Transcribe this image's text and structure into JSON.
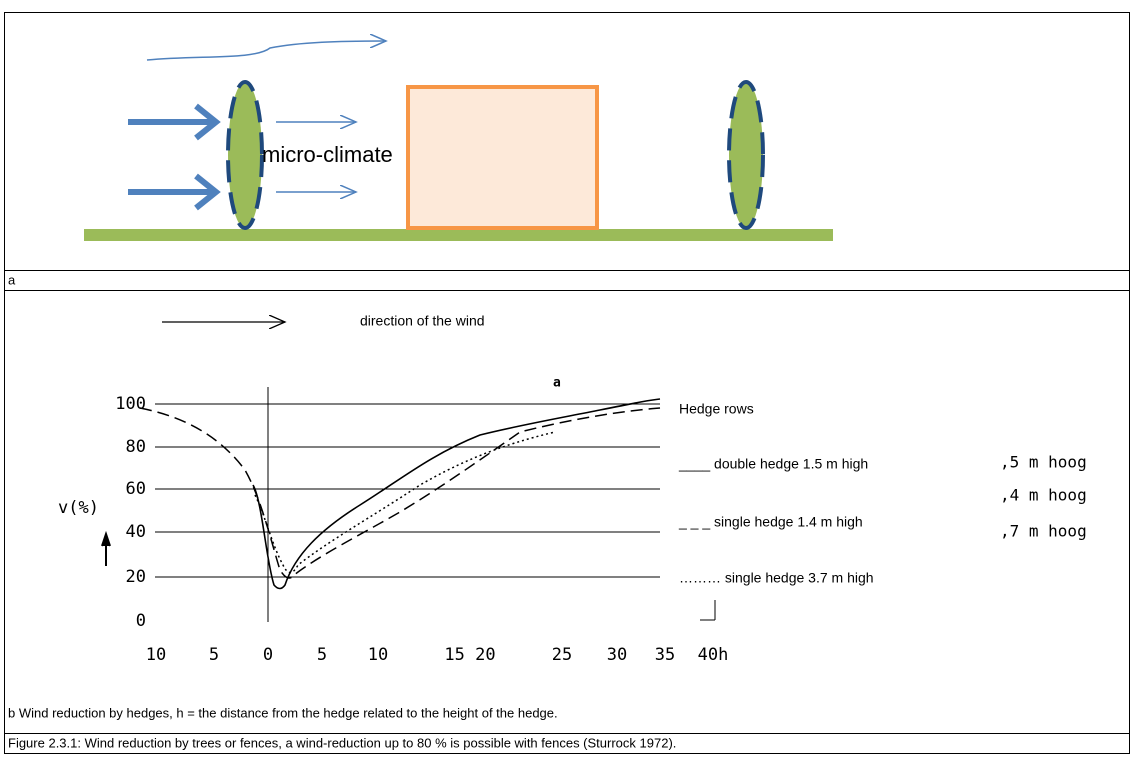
{
  "diagram": {
    "label": "micro-climate",
    "panel_label": "a"
  },
  "graph": {
    "arrow_label": "direction of the wind",
    "title": "a",
    "y_label": "v(%)",
    "yticks": [
      "100",
      "80",
      "60",
      "40",
      "20",
      "0"
    ],
    "xticks": [
      "10",
      "5",
      "0",
      "5",
      "10",
      "15 20",
      "25",
      "30",
      "35",
      "40h"
    ],
    "legend": {
      "title": "Hedge rows",
      "items": [
        "____ double hedge 1.5 m high",
        "_ _ _ single hedge 1.4 m high",
        "……… single hedge 3.7 m high"
      ]
    },
    "fragments": [
      ",5 m hoog",
      ",4 m hoog",
      ",7 m hoog"
    ]
  },
  "captions": {
    "b": "b Wind reduction by hedges, h = the distance from the hedge related to the height of the hedge.",
    "figure": "Figure 2.3.1: Wind reduction by trees or fences, a wind-reduction up to 80 % is possible with fences (Sturrock 1972)."
  }
}
